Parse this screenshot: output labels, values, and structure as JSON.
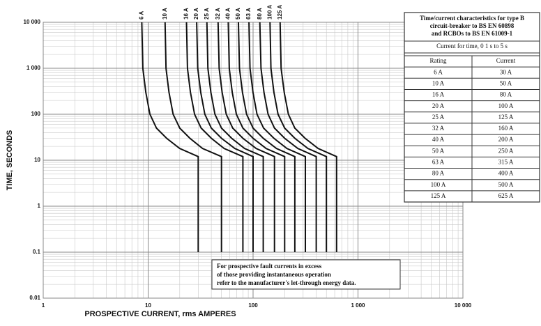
{
  "chart_data": {
    "type": "line",
    "xlabel": "PROSPECTIVE CURRENT, rms AMPERES",
    "ylabel": "TIME, SECONDS",
    "xscale": "log",
    "yscale": "log",
    "xlim": [
      1,
      10000
    ],
    "ylim": [
      0.01,
      10000
    ],
    "xticks": [
      1,
      10,
      100,
      {
        "value": 1000,
        "label": "1 000"
      },
      {
        "value": 10000,
        "label": "10 000"
      }
    ],
    "yticks": [
      {
        "value": 10000,
        "label": "10 000"
      },
      {
        "value": 1000,
        "label": "1 000"
      },
      100,
      10,
      1,
      0.1,
      0.01
    ],
    "grid": true,
    "color": "#111111",
    "series": [
      {
        "name": "6 A",
        "x": [
          8.7,
          8.9,
          9.5,
          10.4,
          12,
          15,
          20,
          30,
          30
        ],
        "values": [
          10000,
          1000,
          300,
          100,
          50,
          30,
          18,
          12,
          0.1
        ]
      },
      {
        "name": "10 A",
        "x": [
          14.5,
          14.8,
          15.8,
          17.3,
          20,
          25,
          33,
          50,
          50
        ],
        "values": [
          10000,
          1000,
          300,
          100,
          50,
          30,
          18,
          12,
          0.1
        ]
      },
      {
        "name": "16 A",
        "x": [
          23.2,
          23.7,
          25.3,
          27.7,
          32,
          40,
          53,
          80,
          80
        ],
        "values": [
          10000,
          1000,
          300,
          100,
          50,
          30,
          18,
          12,
          0.1
        ]
      },
      {
        "name": "20 A",
        "x": [
          29,
          29.7,
          31.7,
          34.7,
          40,
          50,
          67,
          100,
          100
        ],
        "values": [
          10000,
          1000,
          300,
          100,
          50,
          30,
          18,
          12,
          0.1
        ]
      },
      {
        "name": "25 A",
        "x": [
          36.3,
          37.1,
          39.6,
          43.3,
          50,
          62.5,
          83,
          125,
          125
        ],
        "values": [
          10000,
          1000,
          300,
          100,
          50,
          30,
          18,
          12,
          0.1
        ]
      },
      {
        "name": "32 A",
        "x": [
          46.4,
          47.5,
          50.7,
          55.5,
          64,
          80,
          107,
          160,
          160
        ],
        "values": [
          10000,
          1000,
          300,
          100,
          50,
          30,
          18,
          12,
          0.1
        ]
      },
      {
        "name": "40 A",
        "x": [
          58,
          59.3,
          63.3,
          69.3,
          80,
          100,
          133,
          200,
          200
        ],
        "values": [
          10000,
          1000,
          300,
          100,
          50,
          30,
          18,
          12,
          0.1
        ]
      },
      {
        "name": "50 A",
        "x": [
          72.5,
          74.2,
          79.2,
          86.7,
          100,
          125,
          167,
          250,
          250
        ],
        "values": [
          10000,
          1000,
          300,
          100,
          50,
          30,
          18,
          12,
          0.1
        ]
      },
      {
        "name": "63 A",
        "x": [
          91.4,
          93.5,
          99.8,
          109,
          126,
          158,
          210,
          315,
          315
        ],
        "values": [
          10000,
          1000,
          300,
          100,
          50,
          30,
          18,
          12,
          0.1
        ]
      },
      {
        "name": "80 A",
        "x": [
          116,
          119,
          127,
          139,
          160,
          200,
          267,
          400,
          400
        ],
        "values": [
          10000,
          1000,
          300,
          100,
          50,
          30,
          18,
          12,
          0.1
        ]
      },
      {
        "name": "100 A",
        "x": [
          145,
          148,
          158,
          173,
          200,
          250,
          333,
          500,
          500
        ],
        "values": [
          10000,
          1000,
          300,
          100,
          50,
          30,
          18,
          12,
          0.1
        ]
      },
      {
        "name": "125 A",
        "x": [
          181,
          185,
          198,
          217,
          250,
          313,
          417,
          625,
          625
        ],
        "values": [
          10000,
          1000,
          300,
          100,
          50,
          30,
          18,
          12,
          0.1
        ]
      }
    ],
    "annotation": [
      "For prospective fault currents in excess",
      "of those providing instantaneous operation",
      "refer to the manufacturer's let-through energy data."
    ],
    "table": {
      "title": [
        "Time/current characteristics for type B",
        "circuit-breaker to BS EN 60898",
        "and RCBOs to BS EN 61009-1"
      ],
      "subtitle": "Current for time, 0 1 s to 5 s",
      "columns": [
        "Rating",
        "Current"
      ],
      "rows": [
        [
          "6 A",
          "30 A"
        ],
        [
          "10 A",
          "50 A"
        ],
        [
          "16 A",
          "80 A"
        ],
        [
          "20 A",
          "100 A"
        ],
        [
          "25 A",
          "125 A"
        ],
        [
          "32 A",
          "160 A"
        ],
        [
          "40 A",
          "200 A"
        ],
        [
          "50 A",
          "250 A"
        ],
        [
          "63 A",
          "315 A"
        ],
        [
          "80 A",
          "400 A"
        ],
        [
          "100 A",
          "500 A"
        ],
        [
          "125 A",
          "625 A"
        ]
      ]
    }
  }
}
